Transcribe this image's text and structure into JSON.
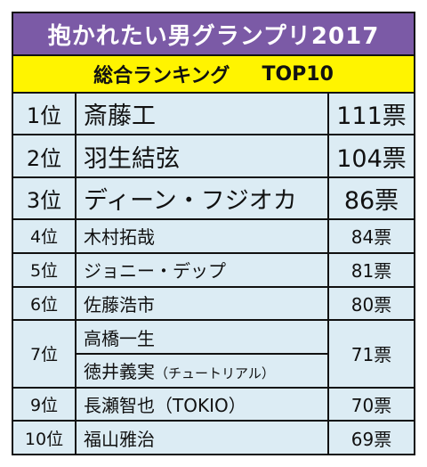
{
  "title": "抱かれたい男グランプリ2017",
  "subtitle_main": "総合ランキング",
  "subtitle_top": "TOP10",
  "rows": [
    {
      "rank": "1位",
      "name": "斎藤工",
      "votes": "111票"
    },
    {
      "rank": "2位",
      "name": "羽生結弦",
      "votes": "104票"
    },
    {
      "rank": "3位",
      "name": "ディーン・フジオカ",
      "votes": "86票"
    },
    {
      "rank": "4位",
      "name": "木村拓哉",
      "votes": "84票"
    },
    {
      "rank": "5位",
      "name": "ジョニー・デップ",
      "votes": "81票"
    },
    {
      "rank": "6位",
      "name": "佐藤浩市",
      "votes": "80票"
    },
    {
      "rank": "7位",
      "name": "高橋一生",
      "votes": "71票",
      "name2": "徳井義実",
      "note2": "（チュートリアル）"
    },
    {
      "rank": "9位",
      "name": "長瀬智也（TOKIO）",
      "votes": "70票"
    },
    {
      "rank": "10位",
      "name": "福山雅治",
      "votes": "69票"
    }
  ],
  "colors": {
    "title_bg": "#7b5aa6",
    "subtitle_bg": "#fff400",
    "cell_bg": "#dcecf4"
  }
}
